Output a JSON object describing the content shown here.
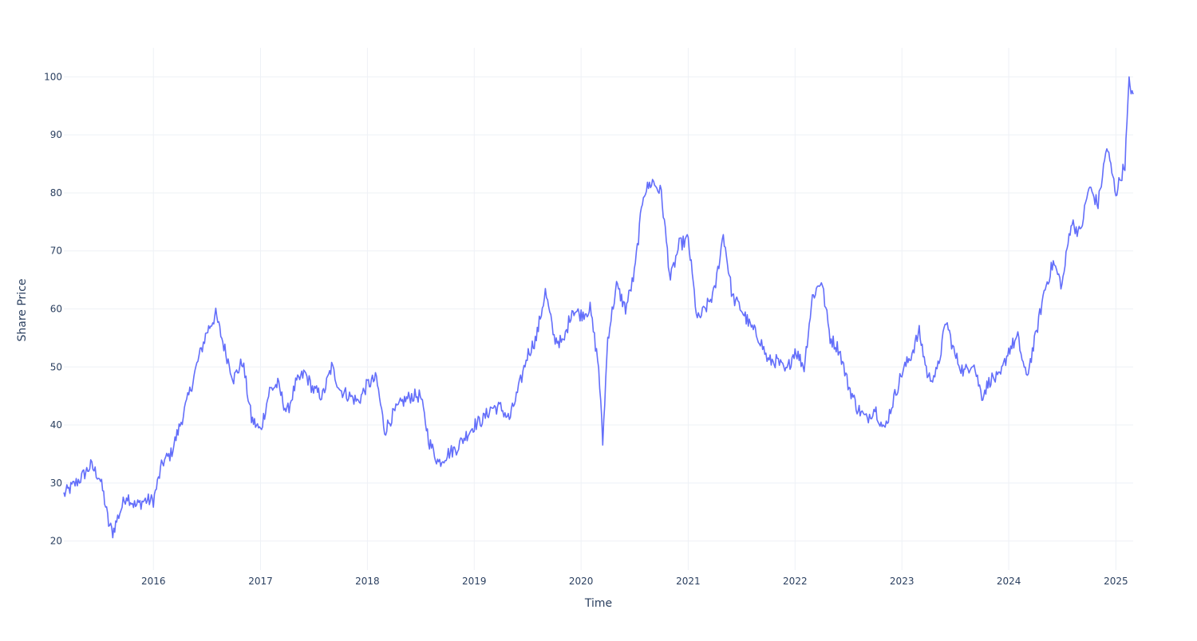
{
  "chart_data": {
    "type": "line",
    "title": "",
    "xlabel": "Time",
    "ylabel": "Share Price",
    "x_tick_labels": [
      "2016",
      "2017",
      "2018",
      "2019",
      "2020",
      "2021",
      "2022",
      "2023",
      "2024",
      "2025"
    ],
    "y_tick_labels": [
      "20",
      "30",
      "40",
      "50",
      "60",
      "70",
      "80",
      "90",
      "100"
    ],
    "xlim": [
      "2015-03-01",
      "2025-03-01"
    ],
    "ylim": [
      15,
      105
    ],
    "grid": true,
    "legend": "none",
    "colors": {
      "line": "#636efa",
      "grid": "#eef1f6",
      "text": "#2a3f5f",
      "background": "#ffffff"
    },
    "series": [
      {
        "x": [
          "2015-03-01",
          "2015-04-01",
          "2015-05-01",
          "2015-06-01",
          "2015-07-01",
          "2015-07-15",
          "2015-08-01",
          "2015-08-15",
          "2015-09-01",
          "2015-10-01",
          "2015-11-01",
          "2015-12-01",
          "2016-01-01",
          "2016-02-01",
          "2016-03-01",
          "2016-04-01",
          "2016-05-01",
          "2016-06-01",
          "2016-07-01",
          "2016-08-01",
          "2016-09-01",
          "2016-10-01",
          "2016-11-01",
          "2016-12-01",
          "2017-01-01",
          "2017-02-01",
          "2017-03-01",
          "2017-04-01",
          "2017-05-01",
          "2017-06-01",
          "2017-07-01",
          "2017-08-01",
          "2017-09-01",
          "2017-10-01",
          "2017-11-01",
          "2017-12-01",
          "2018-01-01",
          "2018-02-01",
          "2018-03-01",
          "2018-04-01",
          "2018-05-01",
          "2018-06-01",
          "2018-07-01",
          "2018-08-01",
          "2018-09-01",
          "2018-10-01",
          "2018-11-01",
          "2018-12-01",
          "2019-01-01",
          "2019-02-01",
          "2019-03-01",
          "2019-04-01",
          "2019-05-01",
          "2019-06-01",
          "2019-07-01",
          "2019-08-01",
          "2019-09-01",
          "2019-10-01",
          "2019-11-01",
          "2019-12-01",
          "2020-01-01",
          "2020-02-01",
          "2020-03-01",
          "2020-03-15",
          "2020-04-01",
          "2020-05-01",
          "2020-06-01",
          "2020-07-01",
          "2020-08-01",
          "2020-09-01",
          "2020-10-01",
          "2020-11-01",
          "2020-12-01",
          "2021-01-01",
          "2021-02-01",
          "2021-03-01",
          "2021-04-01",
          "2021-05-01",
          "2021-06-01",
          "2021-07-01",
          "2021-08-01",
          "2021-09-01",
          "2021-10-01",
          "2021-11-01",
          "2021-12-01",
          "2022-01-01",
          "2022-02-01",
          "2022-03-01",
          "2022-04-01",
          "2022-05-01",
          "2022-06-01",
          "2022-07-01",
          "2022-08-01",
          "2022-09-01",
          "2022-10-01",
          "2022-11-01",
          "2022-12-01",
          "2023-01-01",
          "2023-02-01",
          "2023-03-01",
          "2023-04-01",
          "2023-05-01",
          "2023-06-01",
          "2023-07-01",
          "2023-08-01",
          "2023-09-01",
          "2023-10-01",
          "2023-11-01",
          "2023-12-01",
          "2024-01-01",
          "2024-02-01",
          "2024-03-01",
          "2024-04-01",
          "2024-05-01",
          "2024-06-01",
          "2024-07-01",
          "2024-08-01",
          "2024-09-01",
          "2024-10-01",
          "2024-11-01",
          "2024-12-01",
          "2025-01-01",
          "2025-02-01",
          "2025-02-15",
          "2025-03-01"
        ],
        "values": [
          28,
          29.5,
          31,
          33,
          31,
          28,
          23,
          21.5,
          24,
          28,
          26,
          27,
          27,
          33.5,
          35,
          40,
          45,
          51,
          56,
          59,
          53,
          48,
          51,
          41,
          39,
          46,
          47,
          42,
          47,
          49,
          46,
          45,
          50,
          46,
          45,
          44,
          47,
          48,
          39,
          42,
          44,
          45,
          45,
          37,
          33.5,
          35,
          36,
          38,
          40,
          41,
          43,
          43,
          41,
          46,
          52,
          55,
          63,
          55,
          54,
          60,
          59,
          60,
          50,
          37,
          55,
          64,
          60,
          66,
          80,
          82,
          80,
          65,
          71,
          72,
          58,
          60,
          63,
          73,
          62,
          60,
          57,
          55,
          51,
          51,
          49,
          53,
          50,
          62,
          65,
          55,
          53,
          47,
          43,
          41,
          43,
          39,
          44,
          49,
          52,
          56,
          48,
          49,
          58,
          52,
          49,
          51,
          45,
          48,
          48,
          53,
          55,
          48,
          55,
          63,
          68,
          64,
          75,
          73,
          81,
          78,
          88,
          80,
          85,
          99,
          97
        ]
      }
    ]
  }
}
